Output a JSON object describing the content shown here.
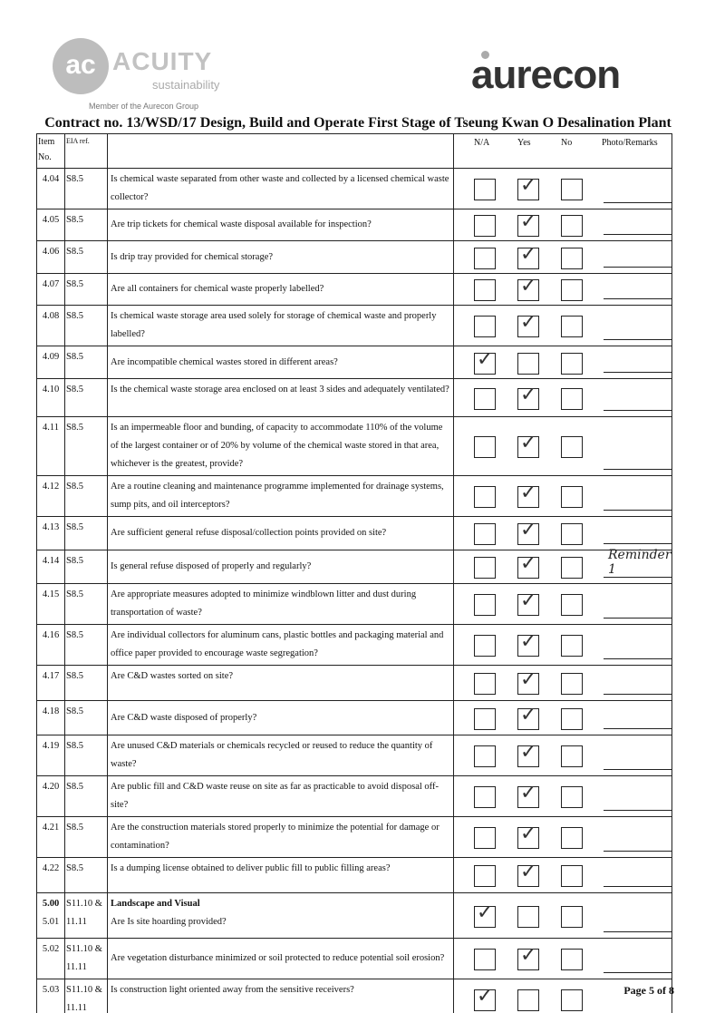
{
  "logos": {
    "left_mark": "ac",
    "left_name": "ACUITY",
    "left_sub": "sustainability",
    "left_member": "Member of the Aurecon Group",
    "right_name": "aurecon"
  },
  "title": "Contract no.  13/WSD/17 Design, Build and Operate First Stage of Tseung Kwan O Desalination Plant",
  "headers": {
    "item": "Item No.",
    "eia": "EIA ref.",
    "na": "N/A",
    "yes": "Yes",
    "no": "No",
    "remarks": "Photo/Remarks"
  },
  "rows": [
    {
      "item": "4.04",
      "eia": "S8.5",
      "q": "Is chemical waste separated from other waste and collected by a licensed chemical waste collector?",
      "answer": "yes",
      "remark": ""
    },
    {
      "item": "4.05",
      "eia": "S8.5",
      "q": "Are trip tickets for chemical waste disposal available for inspection?",
      "answer": "yes",
      "remark": ""
    },
    {
      "item": "4.06",
      "eia": "S8.5",
      "q": "Is drip tray provided for chemical storage?",
      "answer": "yes",
      "remark": ""
    },
    {
      "item": "4.07",
      "eia": "S8.5",
      "q": "Are all containers for chemical waste properly labelled?",
      "answer": "yes",
      "remark": ""
    },
    {
      "item": "4.08",
      "eia": "S8.5",
      "q": "Is chemical waste storage area used solely for storage of chemical waste and properly labelled?",
      "answer": "yes",
      "remark": ""
    },
    {
      "item": "4.09",
      "eia": "S8.5",
      "q": "Are incompatible chemical wastes stored in different areas?",
      "answer": "na",
      "remark": ""
    },
    {
      "item": "4.10",
      "eia": "S8.5",
      "q": "Is the chemical waste storage area enclosed on at least 3 sides and adequately ventilated?",
      "answer": "yes",
      "remark": ""
    },
    {
      "item": "4.11",
      "eia": "S8.5",
      "q": "Is an impermeable floor and bunding, of capacity to accommodate 110% of the volume of the largest container or of 20% by volume of the chemical waste stored in that area, whichever is the greatest, provide?",
      "answer": "yes",
      "remark": ""
    },
    {
      "item": "4.12",
      "eia": "S8.5",
      "q": "Are a routine cleaning and maintenance programme implemented for drainage systems, sump pits, and oil interceptors?",
      "answer": "yes",
      "remark": ""
    },
    {
      "item": "4.13",
      "eia": "S8.5",
      "q": "Are sufficient general refuse disposal/collection points provided on site?",
      "answer": "yes",
      "remark": ""
    },
    {
      "item": "4.14",
      "eia": "S8.5",
      "q": "Is general refuse disposed of properly and regularly?",
      "answer": "yes",
      "remark": "Reminder 1"
    },
    {
      "item": "4.15",
      "eia": "S8.5",
      "q": "Are appropriate measures adopted to minimize windblown litter and dust during transportation of waste?",
      "answer": "yes",
      "remark": ""
    },
    {
      "item": "4.16",
      "eia": "S8.5",
      "q": "Are individual collectors for aluminum cans, plastic bottles and packaging material and office paper provided to encourage waste segregation?",
      "answer": "yes",
      "remark": ""
    },
    {
      "item": "4.17",
      "eia": "S8.5",
      "q": "Are C&D wastes sorted on site?",
      "answer": "yes",
      "remark": ""
    },
    {
      "item": "4.18",
      "eia": "S8.5",
      "q": "Are C&D waste disposed of properly?",
      "answer": "yes",
      "remark": ""
    },
    {
      "item": "4.19",
      "eia": "S8.5",
      "q": "Are unused C&D materials or chemicals recycled or reused to reduce the quantity of waste?",
      "answer": "yes",
      "remark": ""
    },
    {
      "item": "4.20",
      "eia": "S8.5",
      "q": "Are public fill and C&D waste reuse on site as far as practicable to avoid disposal off-site?",
      "answer": "yes",
      "remark": ""
    },
    {
      "item": "4.21",
      "eia": "S8.5",
      "q": "Are the construction materials stored properly to minimize the potential for damage or contamination?",
      "answer": "yes",
      "remark": ""
    },
    {
      "item": "4.22",
      "eia": "S8.5",
      "q": "Is a dumping license obtained to deliver public fill to public filling areas?",
      "answer": "yes",
      "remark": ""
    },
    {
      "item": "5.00",
      "item2": "5.01",
      "eia": "S11.10 & 11.11",
      "section": "Landscape and Visual",
      "q": "Are Is site hoarding provided?",
      "answer": "na",
      "remark": ""
    },
    {
      "item": "5.02",
      "eia": "S11.10 & 11.11",
      "q": "Are vegetation disturbance minimized or soil protected to reduce potential soil erosion?",
      "answer": "yes",
      "remark": ""
    },
    {
      "item": "5.03",
      "eia": "S11.10 & 11.11",
      "q": "Is construction light oriented away from the sensitive receivers?",
      "answer": "na",
      "remark": ""
    }
  ],
  "footer": "Page 5 of 8"
}
